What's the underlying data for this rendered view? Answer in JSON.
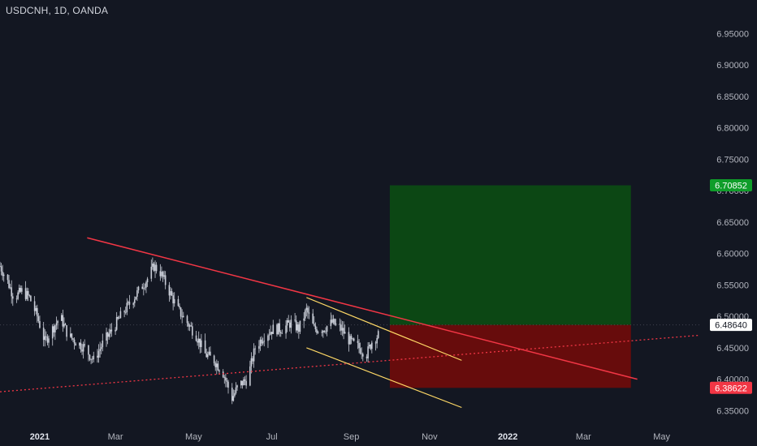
{
  "header": {
    "symbol_line": "USDCNH, 1D, OANDA"
  },
  "colors": {
    "background": "#131722",
    "candle": "#c8ccd6",
    "trendline_red": "#f23645",
    "channel_line": "#ffd966",
    "support_dotted": "#f23645",
    "target_zone": "#0c4a14",
    "stop_zone": "#6b0c0c",
    "target_badge": "#0f9d2a",
    "stop_badge": "#f23645"
  },
  "chart_data": {
    "type": "candlestick",
    "title": "USDCNH, 1D, OANDA",
    "ylim": [
      6.335,
      6.975
    ],
    "y_ticks": [
      "6.95000",
      "6.90000",
      "6.85000",
      "6.80000",
      "6.75000",
      "6.70000",
      "6.65000",
      "6.60000",
      "6.55000",
      "6.50000",
      "6.45000",
      "6.40000",
      "6.35000"
    ],
    "x_ticks": [
      "2021",
      "Mar",
      "May",
      "Jul",
      "Sep",
      "Nov",
      "2022",
      "Mar",
      "May"
    ],
    "x_tick_bold": [
      true,
      false,
      false,
      false,
      false,
      false,
      true,
      false,
      false
    ],
    "x_range": [
      "2020-12-01",
      "2022-05-31"
    ],
    "x_tick_dates": [
      "2021-01-01",
      "2021-03-01",
      "2021-05-01",
      "2021-07-01",
      "2021-09-01",
      "2021-11-01",
      "2022-01-01",
      "2022-03-01",
      "2022-05-01"
    ],
    "price_path": [
      [
        "2020-12-01",
        6.58
      ],
      [
        "2020-12-06",
        6.56
      ],
      [
        "2020-12-12",
        6.53
      ],
      [
        "2020-12-18",
        6.54
      ],
      [
        "2020-12-24",
        6.53
      ],
      [
        "2020-12-30",
        6.5
      ],
      [
        "2021-01-05",
        6.46
      ],
      [
        "2021-01-11",
        6.48
      ],
      [
        "2021-01-17",
        6.5
      ],
      [
        "2021-01-23",
        6.47
      ],
      [
        "2021-01-29",
        6.46
      ],
      [
        "2021-02-05",
        6.45
      ],
      [
        "2021-02-12",
        6.43
      ],
      [
        "2021-02-20",
        6.46
      ],
      [
        "2021-02-27",
        6.48
      ],
      [
        "2021-03-05",
        6.5
      ],
      [
        "2021-03-12",
        6.52
      ],
      [
        "2021-03-19",
        6.54
      ],
      [
        "2021-03-26",
        6.56
      ],
      [
        "2021-03-31",
        6.58
      ],
      [
        "2021-04-05",
        6.57
      ],
      [
        "2021-04-12",
        6.54
      ],
      [
        "2021-04-19",
        6.51
      ],
      [
        "2021-04-26",
        6.49
      ],
      [
        "2021-05-03",
        6.47
      ],
      [
        "2021-05-10",
        6.44
      ],
      [
        "2021-05-17",
        6.43
      ],
      [
        "2021-05-24",
        6.41
      ],
      [
        "2021-05-31",
        6.37
      ],
      [
        "2021-06-05",
        6.39
      ],
      [
        "2021-06-12",
        6.4
      ],
      [
        "2021-06-18",
        6.45
      ],
      [
        "2021-06-25",
        6.47
      ],
      [
        "2021-07-02",
        6.48
      ],
      [
        "2021-07-09",
        6.48
      ],
      [
        "2021-07-16",
        6.49
      ],
      [
        "2021-07-22",
        6.48
      ],
      [
        "2021-07-28",
        6.51
      ],
      [
        "2021-08-03",
        6.48
      ],
      [
        "2021-08-10",
        6.48
      ],
      [
        "2021-08-17",
        6.49
      ],
      [
        "2021-08-24",
        6.48
      ],
      [
        "2021-08-31",
        6.46
      ],
      [
        "2021-09-07",
        6.45
      ],
      [
        "2021-09-13",
        6.44
      ],
      [
        "2021-09-17",
        6.46
      ],
      [
        "2021-09-22",
        6.47
      ]
    ],
    "trendline": {
      "start": [
        "2021-02-07",
        6.625
      ],
      "end": [
        "2022-04-12",
        6.4
      ]
    },
    "channel_upper": {
      "start": [
        "2021-07-28",
        6.53
      ],
      "end": [
        "2021-11-26",
        6.43
      ]
    },
    "channel_lower": {
      "start": [
        "2021-07-28",
        6.45
      ],
      "end": [
        "2021-11-26",
        6.355
      ]
    },
    "support_dotted": {
      "start": [
        "2020-12-01",
        6.38
      ],
      "end": [
        "2022-05-31",
        6.47
      ]
    },
    "position": {
      "start_date": "2021-10-01",
      "end_date": "2022-04-07",
      "entry": 6.4864,
      "target": 6.70852,
      "stop": 6.38622
    },
    "last_price_label": "6.48640",
    "target_label": "6.70852",
    "stop_label": "6.38622"
  }
}
